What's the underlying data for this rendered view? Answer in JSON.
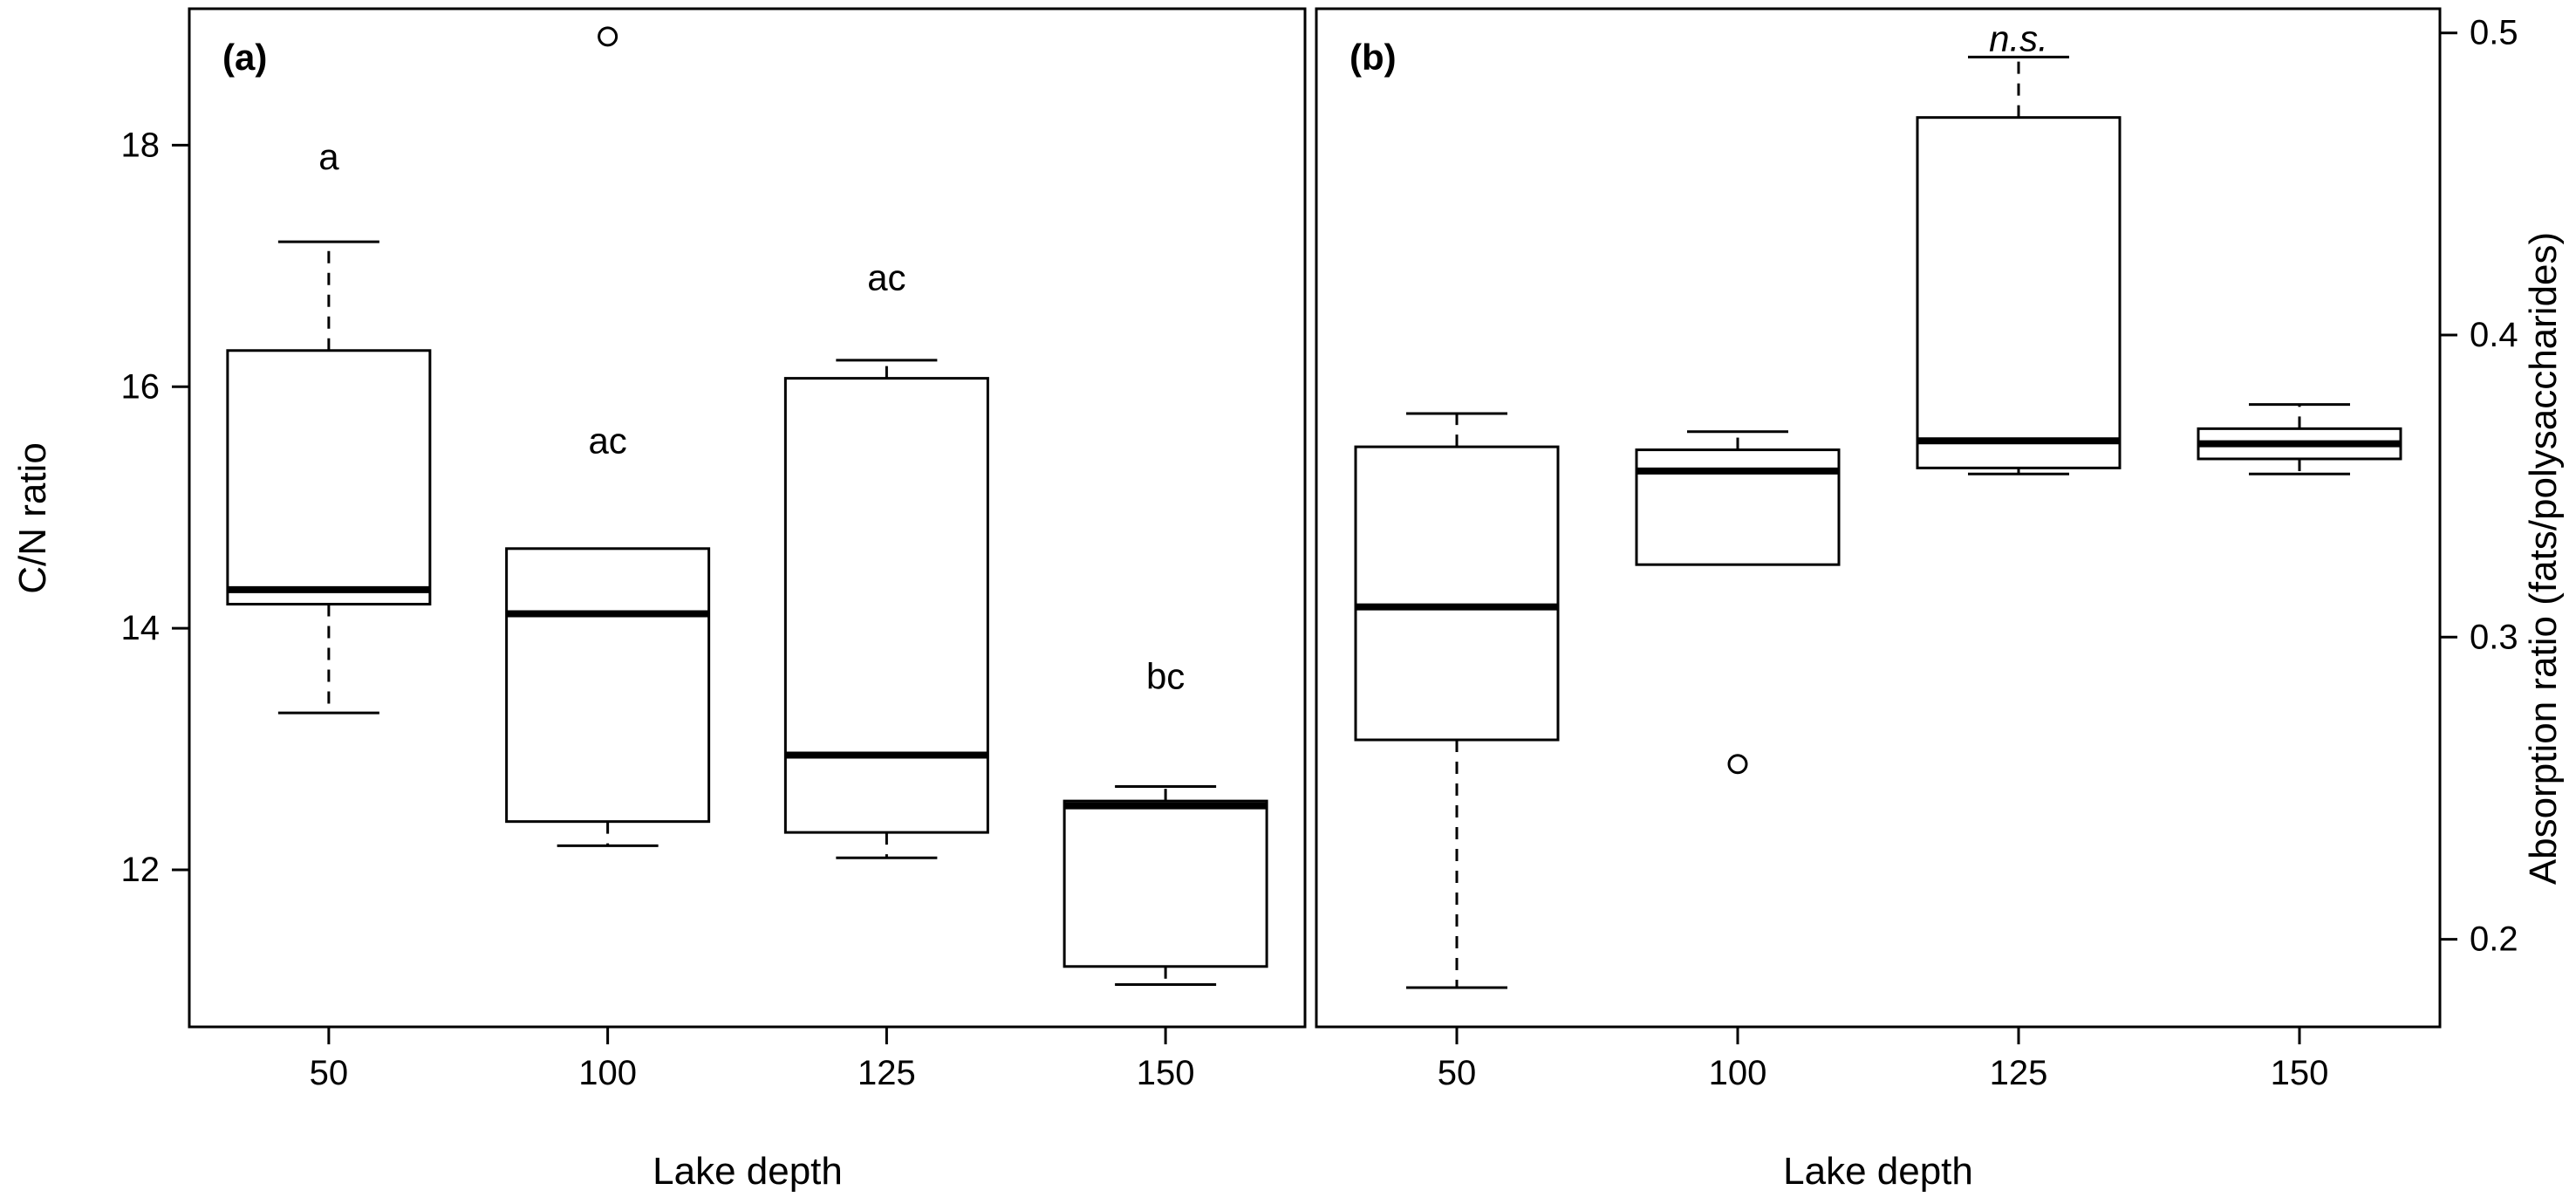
{
  "figure": {
    "background": "#ffffff",
    "line_color": "#000000"
  },
  "chart_data": [
    {
      "type": "boxplot",
      "id": "a",
      "tag": "(a)",
      "xlabel": "Lake depth",
      "ylabel": "C/N ratio",
      "axis_side": "left",
      "categories": [
        "50",
        "100",
        "125",
        "150"
      ],
      "ylim": [
        10.7,
        19.13
      ],
      "yticks": [
        12,
        14,
        16,
        18
      ],
      "ytick_labels": [
        "12",
        "14",
        "16",
        "18"
      ],
      "boxes": [
        {
          "category": "50",
          "low": 13.3,
          "q1": 14.2,
          "median": 14.32,
          "q3": 16.3,
          "high": 17.2,
          "outliers": [],
          "label": "a",
          "label_y": 17.8,
          "label_style": "plain"
        },
        {
          "category": "100",
          "low": 12.2,
          "q1": 12.4,
          "median": 14.12,
          "q3": 14.66,
          "high": 14.66,
          "outliers": [
            18.9
          ],
          "label": "ac",
          "label_y": 15.45,
          "label_style": "plain"
        },
        {
          "category": "125",
          "low": 12.1,
          "q1": 12.31,
          "median": 12.95,
          "q3": 16.07,
          "high": 16.22,
          "outliers": [],
          "label": "ac",
          "label_y": 16.8,
          "label_style": "plain"
        },
        {
          "category": "150",
          "low": 11.05,
          "q1": 11.2,
          "median": 12.53,
          "q3": 12.57,
          "high": 12.69,
          "outliers": [],
          "label": "bc",
          "label_y": 13.5,
          "label_style": "plain"
        }
      ]
    },
    {
      "type": "boxplot",
      "id": "b",
      "tag": "(b)",
      "xlabel": "Lake depth",
      "ylabel": "Absorption ratio (fats/polysaccharides)",
      "axis_side": "right",
      "categories": [
        "50",
        "100",
        "125",
        "150"
      ],
      "ylim": [
        0.171,
        0.508
      ],
      "yticks": [
        0.2,
        0.3,
        0.4,
        0.5
      ],
      "ytick_labels": [
        "0.2",
        "0.3",
        "0.4",
        "0.5"
      ],
      "boxes": [
        {
          "category": "50",
          "low": 0.184,
          "q1": 0.266,
          "median": 0.31,
          "q3": 0.363,
          "high": 0.374,
          "outliers": [],
          "label": "",
          "label_y": null,
          "label_style": "plain"
        },
        {
          "category": "100",
          "low": 0.324,
          "q1": 0.324,
          "median": 0.355,
          "q3": 0.362,
          "high": 0.368,
          "outliers": [
            0.258
          ],
          "label": "",
          "label_y": null,
          "label_style": "plain"
        },
        {
          "category": "125",
          "low": 0.354,
          "q1": 0.356,
          "median": 0.365,
          "q3": 0.472,
          "high": 0.492,
          "outliers": [],
          "label": "n.s.",
          "label_y": 0.494,
          "label_style": "italic"
        },
        {
          "category": "150",
          "low": 0.354,
          "q1": 0.359,
          "median": 0.364,
          "q3": 0.369,
          "high": 0.377,
          "outliers": [],
          "label": "",
          "label_y": null,
          "label_style": "plain"
        }
      ]
    }
  ]
}
